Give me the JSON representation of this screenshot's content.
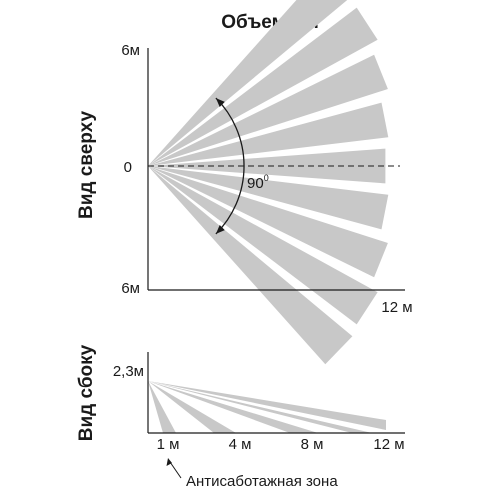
{
  "title": "Объемная",
  "top_view": {
    "side_label": "Вид сверху",
    "y_top_label": "6м",
    "y_zero_label": "0",
    "y_bottom_label": "6м",
    "x_end_label": "12 м",
    "angle_label": "90",
    "angle_degree_mark": "0"
  },
  "side_view": {
    "side_label": "Вид сбоку",
    "height_label": "2,3м",
    "x_labels": [
      "1 м",
      "4 м",
      "8 м",
      "12 м"
    ],
    "annotation": "Антисаботажная зона"
  },
  "colors": {
    "beam_fill": "#c8c8c8",
    "axis": "#1a1a1a",
    "background": "#ffffff"
  }
}
